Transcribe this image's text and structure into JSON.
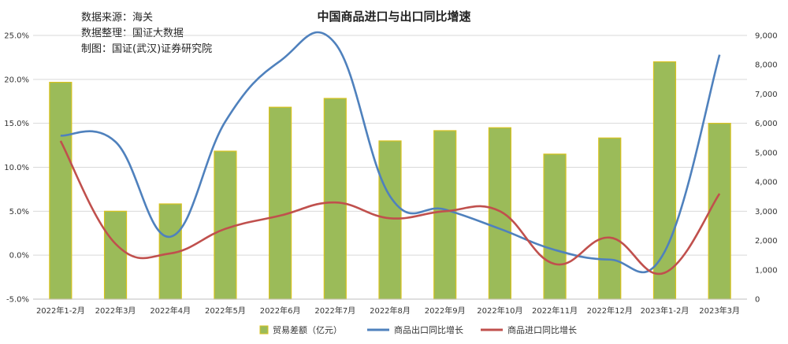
{
  "chart_data": {
    "type": "bar+line",
    "title": "中国商品进口与出口同比增速",
    "source_lines": [
      "数据来源：海关",
      "数据整理：国证大数据",
      "制图：国证(武汉)证券研究院"
    ],
    "categories": [
      "2022年1-2月",
      "2022年3月",
      "2022年4月",
      "2022年5月",
      "2022年6月",
      "2022年7月",
      "2022年8月",
      "2022年9月",
      "2022年10月",
      "2022年11月",
      "2022年12月",
      "2023年1-2月",
      "2023年3月"
    ],
    "left_axis": {
      "min": -0.05,
      "max": 0.25,
      "ticks": [
        "-5.0%",
        "0.0%",
        "5.0%",
        "10.0%",
        "15.0%",
        "20.0%",
        "25.0%"
      ]
    },
    "right_axis": {
      "min": 0,
      "max": 9000,
      "ticks": [
        "0",
        "1,000",
        "2,000",
        "3,000",
        "4,000",
        "5,000",
        "6,000",
        "7,000",
        "8,000",
        "9,000"
      ]
    },
    "series": [
      {
        "name": "贸易差额（亿元）",
        "type": "bar",
        "axis": "right",
        "color": "#9bbb59",
        "edge": "#d8c21f",
        "values": [
          7400,
          3000,
          3250,
          5050,
          6550,
          6850,
          5400,
          5750,
          5850,
          4950,
          5500,
          8100,
          6000
        ]
      },
      {
        "name": "商品出口同比增长",
        "type": "line",
        "axis": "left",
        "color": "#4f81bd",
        "values": [
          0.136,
          0.129,
          0.021,
          0.152,
          0.221,
          0.241,
          0.067,
          0.052,
          0.03,
          0.006,
          -0.005,
          0.004,
          0.228
        ]
      },
      {
        "name": "商品进口同比增长",
        "type": "line",
        "axis": "left",
        "color": "#c0504d",
        "values": [
          0.13,
          0.013,
          0.002,
          0.03,
          0.045,
          0.06,
          0.042,
          0.05,
          0.05,
          -0.01,
          0.02,
          -0.02,
          0.07
        ]
      }
    ],
    "legend_position": "bottom",
    "grid": true
  }
}
